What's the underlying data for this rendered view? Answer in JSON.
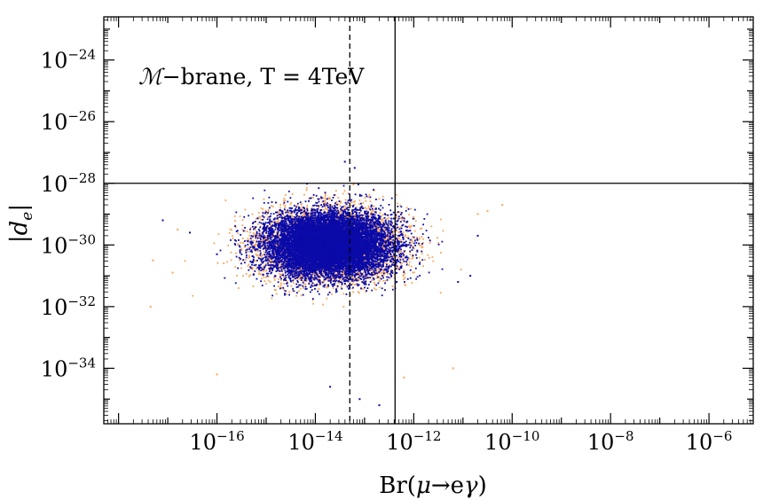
{
  "chart_data": {
    "type": "scatter",
    "title": "",
    "annotation": {
      "symbol": "ℳ",
      "rest": "−brane, T = 4TeV"
    },
    "xlabel": {
      "prefix": "Br(",
      "mu": "μ",
      "arrow": "→",
      "e": "e",
      "gamma": "γ",
      "suffix": ")"
    },
    "ylabel": {
      "open": "|",
      "d": "d",
      "sub": "e",
      "close": "|"
    },
    "xscale": "log",
    "yscale": "log",
    "xlim_log10": [
      -18.3,
      -5.1
    ],
    "ylim_log10": [
      -35.8,
      -22.6
    ],
    "x_ticks": [
      {
        "base": "10",
        "exp": "−16",
        "log10": -16
      },
      {
        "base": "10",
        "exp": "−14",
        "log10": -14
      },
      {
        "base": "10",
        "exp": "−12",
        "log10": -12
      },
      {
        "base": "10",
        "exp": "−10",
        "log10": -10
      },
      {
        "base": "10",
        "exp": "−8",
        "log10": -8
      },
      {
        "base": "10",
        "exp": "−6",
        "log10": -6
      }
    ],
    "y_ticks": [
      {
        "base": "10",
        "exp": "−24",
        "log10": -24
      },
      {
        "base": "10",
        "exp": "−26",
        "log10": -26
      },
      {
        "base": "10",
        "exp": "−28",
        "log10": -28
      },
      {
        "base": "10",
        "exp": "−30",
        "log10": -30
      },
      {
        "base": "10",
        "exp": "−32",
        "log10": -32
      },
      {
        "base": "10",
        "exp": "−34",
        "log10": -34
      }
    ],
    "reference_lines": [
      {
        "orientation": "vertical",
        "x_log10": -12.38,
        "style": "solid"
      },
      {
        "orientation": "vertical",
        "x_log10": -13.3,
        "style": "dashed"
      },
      {
        "orientation": "horizontal",
        "y_log10": -28.0,
        "style": "solid"
      }
    ],
    "series": [
      {
        "color": "#f5a55a",
        "marker": "dot",
        "cloud": {
          "center_log10": [
            -13.7,
            -30.0
          ],
          "spread_log10": [
            1.15,
            0.95
          ],
          "count": 5200
        },
        "outliers": [
          [
            -17.3,
            -30.5
          ],
          [
            -16.9,
            -30.9
          ],
          [
            -17.35,
            -32.0
          ],
          [
            -16.0,
            -34.2
          ],
          [
            -11.2,
            -34.0
          ],
          [
            -12.2,
            -34.3
          ],
          [
            -10.7,
            -29.0
          ],
          [
            -10.5,
            -28.9
          ],
          [
            -10.2,
            -28.7
          ],
          [
            -16.8,
            -29.5
          ]
        ]
      },
      {
        "color": "#0a0aa8",
        "marker": "dot",
        "cloud": {
          "center_log10": [
            -13.75,
            -30.0
          ],
          "spread_log10": [
            1.0,
            0.82
          ],
          "count": 12000
        },
        "outliers": [
          [
            -17.1,
            -29.2
          ],
          [
            -16.55,
            -29.6
          ],
          [
            -16.0,
            -30.3
          ],
          [
            -10.7,
            -29.7
          ],
          [
            -11.1,
            -31.2
          ],
          [
            -10.85,
            -31.0
          ],
          [
            -13.1,
            -35.0
          ],
          [
            -12.7,
            -35.2
          ],
          [
            -13.7,
            -34.6
          ],
          [
            -13.4,
            -27.3
          ],
          [
            -13.2,
            -27.5
          ]
        ]
      }
    ],
    "grid": false,
    "legend": "none"
  }
}
